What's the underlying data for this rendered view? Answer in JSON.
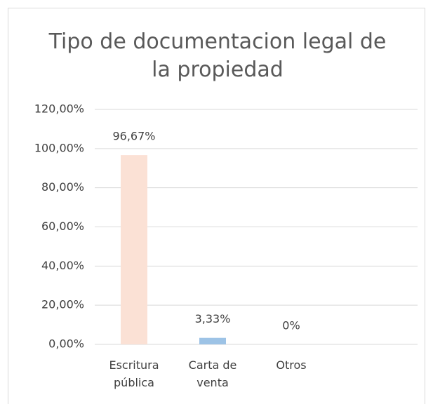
{
  "chart_data": {
    "type": "bar",
    "title": "Tipo de documentacion legal de la propiedad",
    "categories": [
      "Escritura pública",
      "Carta de venta",
      "Otros",
      null
    ],
    "values": [
      96.67,
      3.33,
      0,
      null
    ],
    "value_labels": [
      "96,67%",
      "3,33%",
      "0%",
      null
    ],
    "colors": [
      "#fbe1d5",
      "#9dc3e6",
      "#a5a5a5",
      null
    ],
    "ylim": [
      0,
      120
    ],
    "yticks": [
      {
        "value": 0,
        "label": "0,00%"
      },
      {
        "value": 20,
        "label": "20,00%"
      },
      {
        "value": 40,
        "label": "40,00%"
      },
      {
        "value": 60,
        "label": "60,00%"
      },
      {
        "value": 80,
        "label": "80,00%"
      },
      {
        "value": 100,
        "label": "100,00%"
      },
      {
        "value": 120,
        "label": "120,00%"
      }
    ],
    "grid": true
  }
}
